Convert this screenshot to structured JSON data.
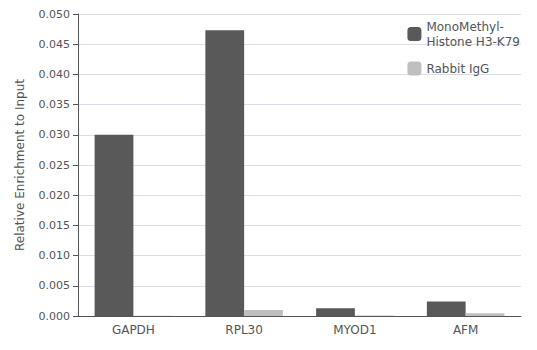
{
  "chart_data": {
    "type": "bar",
    "categories": [
      "GAPDH",
      "RPL30",
      "MYOD1",
      "AFM"
    ],
    "series": [
      {
        "name": "MonoMethyl-\nHistone H3-K79",
        "color": "#595959",
        "values": [
          0.03,
          0.0473,
          0.0013,
          0.0024
        ]
      },
      {
        "name": "Rabbit IgG",
        "color": "#bfbfbf",
        "values": [
          5e-05,
          0.001,
          8e-05,
          0.00045
        ]
      }
    ],
    "ylabel": "Relative Enrichment to Input",
    "ylim": [
      0,
      0.05
    ],
    "yticks": [
      {
        "value": 0.0,
        "label": "0.000"
      },
      {
        "value": 0.005,
        "label": "0.005"
      },
      {
        "value": 0.01,
        "label": "0.010"
      },
      {
        "value": 0.015,
        "label": "0.015"
      },
      {
        "value": 0.02,
        "label": "0.020"
      },
      {
        "value": 0.025,
        "label": "0.025"
      },
      {
        "value": 0.03,
        "label": "0.030"
      },
      {
        "value": 0.035,
        "label": "0.035"
      },
      {
        "value": 0.04,
        "label": "0.040"
      },
      {
        "value": 0.045,
        "label": "0.045"
      },
      {
        "value": 0.05,
        "label": "0.050"
      }
    ],
    "grid": true,
    "legend": "upper right"
  }
}
